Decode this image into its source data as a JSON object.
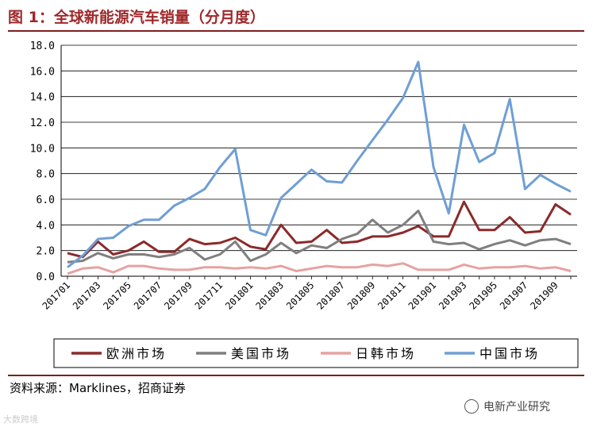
{
  "title": "图 1：全球新能源汽车销量（分月度）",
  "source": "资料来源：Marklines，招商证券",
  "watermark_right": "电新产业研究",
  "watermark_left": "大数跨境",
  "colors": {
    "title": "#a0282a",
    "rule": "#7f1e20"
  },
  "chart_data": {
    "type": "line",
    "title": "",
    "xlabel": "",
    "ylabel": "",
    "ylim": [
      0,
      18
    ],
    "yticks": [
      "0.0",
      "2.0",
      "4.0",
      "6.0",
      "8.0",
      "10.0",
      "12.0",
      "14.0",
      "16.0",
      "18.0"
    ],
    "grid": true,
    "legend": "bottom",
    "x": [
      "201701",
      "201702",
      "201703",
      "201704",
      "201705",
      "201706",
      "201707",
      "201708",
      "201709",
      "201710",
      "201711",
      "201712",
      "201801",
      "201802",
      "201803",
      "201804",
      "201805",
      "201806",
      "201807",
      "201808",
      "201809",
      "201810",
      "201811",
      "201812",
      "201901",
      "201902",
      "201903",
      "201904",
      "201905",
      "201906",
      "201907",
      "201908",
      "201909",
      "201910"
    ],
    "xtick_labels": [
      "201701",
      "201703",
      "201705",
      "201707",
      "201709",
      "201711",
      "201801",
      "201803",
      "201805",
      "201807",
      "201809",
      "201811",
      "201901",
      "201903",
      "201905",
      "201907",
      "201909"
    ],
    "series": [
      {
        "name": "欧洲市场",
        "color": "#8b2a2a",
        "values": [
          1.8,
          1.5,
          2.7,
          1.7,
          2.0,
          2.7,
          1.9,
          1.9,
          2.9,
          2.5,
          2.6,
          3.0,
          2.3,
          2.1,
          4.0,
          2.6,
          2.7,
          3.6,
          2.6,
          2.7,
          3.1,
          3.1,
          3.4,
          3.9,
          3.1,
          3.1,
          5.8,
          3.6,
          3.6,
          4.6,
          3.4,
          3.5,
          5.6,
          4.8
        ]
      },
      {
        "name": "美国市场",
        "color": "#7f7f7f",
        "values": [
          1.1,
          1.2,
          1.8,
          1.4,
          1.7,
          1.7,
          1.5,
          1.7,
          2.2,
          1.3,
          1.7,
          2.7,
          1.2,
          1.7,
          2.6,
          1.8,
          2.4,
          2.2,
          2.9,
          3.3,
          4.4,
          3.4,
          4.0,
          5.1,
          2.7,
          2.5,
          2.6,
          2.1,
          2.5,
          2.8,
          2.4,
          2.8,
          2.9,
          2.5
        ]
      },
      {
        "name": "日韩市场",
        "color": "#e6a2a2",
        "values": [
          0.2,
          0.6,
          0.7,
          0.3,
          0.8,
          0.8,
          0.6,
          0.5,
          0.5,
          0.7,
          0.7,
          0.6,
          0.7,
          0.6,
          0.8,
          0.4,
          0.6,
          0.8,
          0.7,
          0.7,
          0.9,
          0.8,
          1.0,
          0.5,
          0.5,
          0.5,
          0.9,
          0.6,
          0.7,
          0.7,
          0.8,
          0.6,
          0.7,
          0.4
        ]
      },
      {
        "name": "中国市场",
        "color": "#6f9fd4",
        "values": [
          0.7,
          1.6,
          2.9,
          3.0,
          3.9,
          4.4,
          4.4,
          5.5,
          6.1,
          6.8,
          8.5,
          9.9,
          3.6,
          3.2,
          6.1,
          7.2,
          8.3,
          7.4,
          7.3,
          9.0,
          10.6,
          12.2,
          13.9,
          16.7,
          8.5,
          4.9,
          11.8,
          8.9,
          9.6,
          13.8,
          6.8,
          7.9,
          7.2,
          6.6
        ]
      }
    ]
  }
}
